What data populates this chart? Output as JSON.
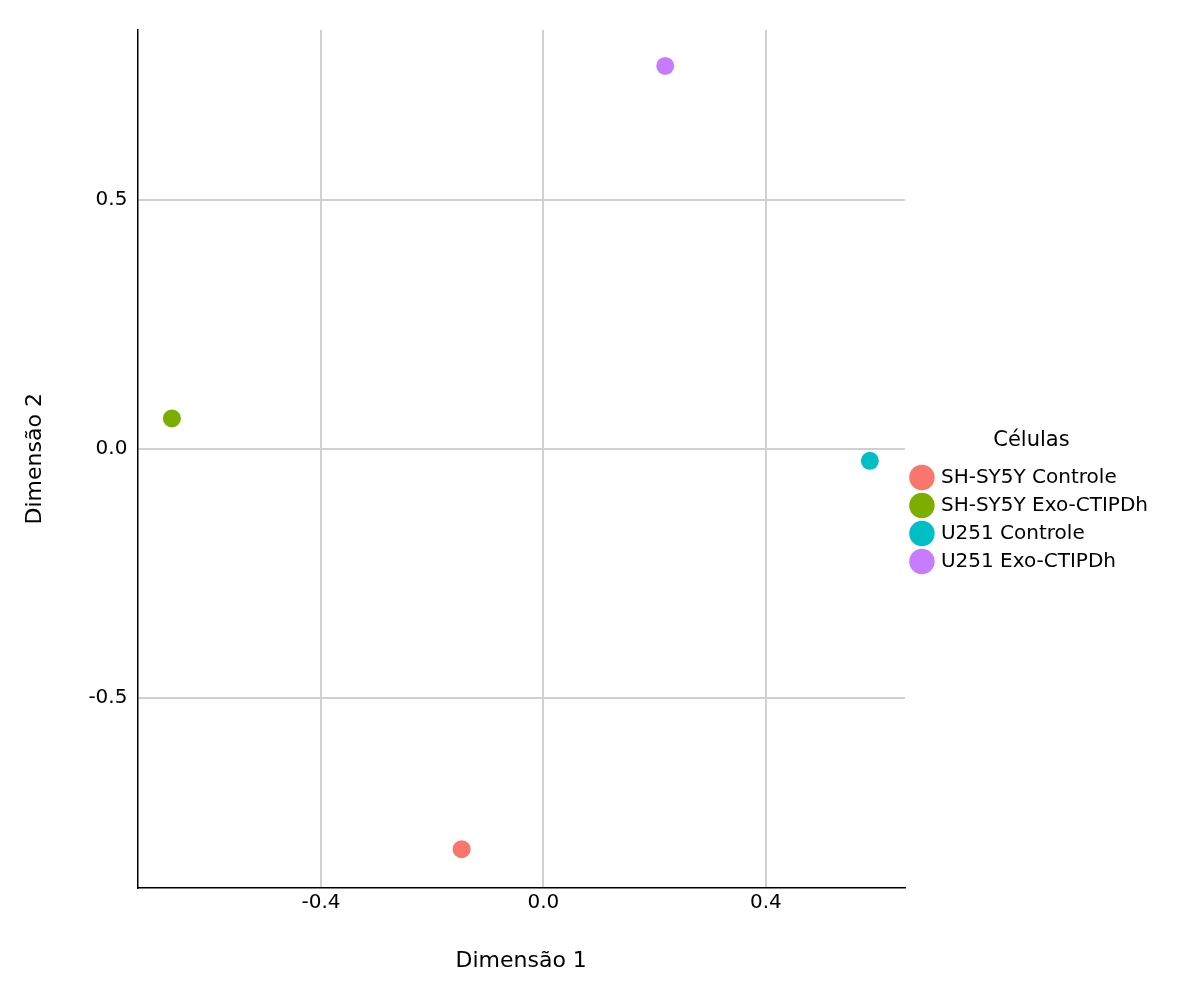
{
  "chart_data": {
    "type": "scatter",
    "xlabel": "Dimensão 1",
    "ylabel": "Dimensão 2",
    "legend_title": "Células",
    "legend": "right",
    "grid": true,
    "marker": "circle",
    "xlim": [
      -0.73,
      0.65
    ],
    "ylim": [
      -0.88,
      0.84
    ],
    "xticks": [
      {
        "value": -0.4,
        "label": "-0.4"
      },
      {
        "value": 0,
        "label": "0.0"
      },
      {
        "value": 0.4,
        "label": "0.4"
      }
    ],
    "yticks": [
      {
        "value": -0.5,
        "label": "-0.5"
      },
      {
        "value": 0,
        "label": "0.0"
      },
      {
        "value": 0.5,
        "label": "0.5"
      }
    ],
    "series": [
      {
        "name": "SH-SY5Y Controle",
        "color": "#f8766d",
        "x": [
          -0.147
        ],
        "values": [
          -0.803
        ]
      },
      {
        "name": "SH-SY5Y Exo-CTIPDh",
        "color": "#7cae00",
        "x": [
          -0.668
        ],
        "values": [
          0.061
        ]
      },
      {
        "name": "U251 Controle",
        "color": "#00bfc4",
        "x": [
          0.587
        ],
        "values": [
          -0.024
        ]
      },
      {
        "name": "U251 Exo-CTIPDh",
        "color": "#c77cff",
        "x": [
          0.219
        ],
        "values": [
          0.768
        ]
      }
    ]
  }
}
